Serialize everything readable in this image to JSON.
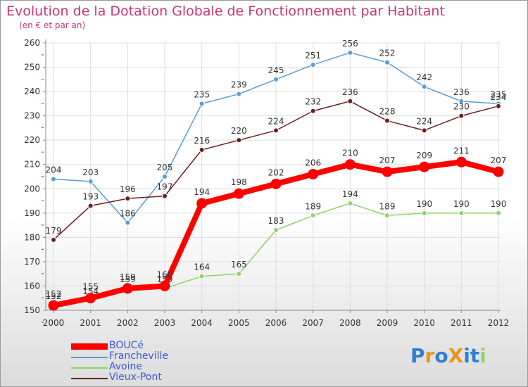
{
  "title": "Evolution de la Dotation Globale de Fonctionnement par Habitant",
  "subtitle": "(en € et par an)",
  "logo": "ProXiti",
  "chart_data": {
    "type": "line",
    "categories": [
      "2000",
      "2001",
      "2002",
      "2003",
      "2004",
      "2005",
      "2006",
      "2007",
      "2008",
      "2009",
      "2010",
      "2011",
      "2012"
    ],
    "ylim": [
      150,
      260
    ],
    "yticks": [
      150,
      160,
      170,
      180,
      190,
      200,
      210,
      220,
      230,
      240,
      250,
      260
    ],
    "series": [
      {
        "name": "Francheville",
        "color": "#5b9bd5",
        "values": [
          204,
          203,
          186,
          205,
          235,
          239,
          245,
          251,
          256,
          252,
          242,
          236,
          235
        ]
      },
      {
        "name": "Vieux-Pont",
        "color": "#6b1f1f",
        "values": [
          179,
          193,
          196,
          197,
          216,
          220,
          224,
          232,
          236,
          228,
          224,
          230,
          234
        ]
      },
      {
        "name": "Avoine",
        "color": "#8fd36a",
        "values": [
          152,
          154,
          159,
          159,
          164,
          165,
          183,
          189,
          194,
          189,
          190,
          190,
          190
        ]
      },
      {
        "name": "BOUCé",
        "color": "#ff0000",
        "values": [
          152,
          155,
          159,
          160,
          194,
          198,
          202,
          206,
          210,
          207,
          209,
          211,
          207
        ]
      }
    ],
    "legend": [
      "BOUCé",
      "Francheville",
      "Avoine",
      "Vieux-Pont"
    ]
  }
}
